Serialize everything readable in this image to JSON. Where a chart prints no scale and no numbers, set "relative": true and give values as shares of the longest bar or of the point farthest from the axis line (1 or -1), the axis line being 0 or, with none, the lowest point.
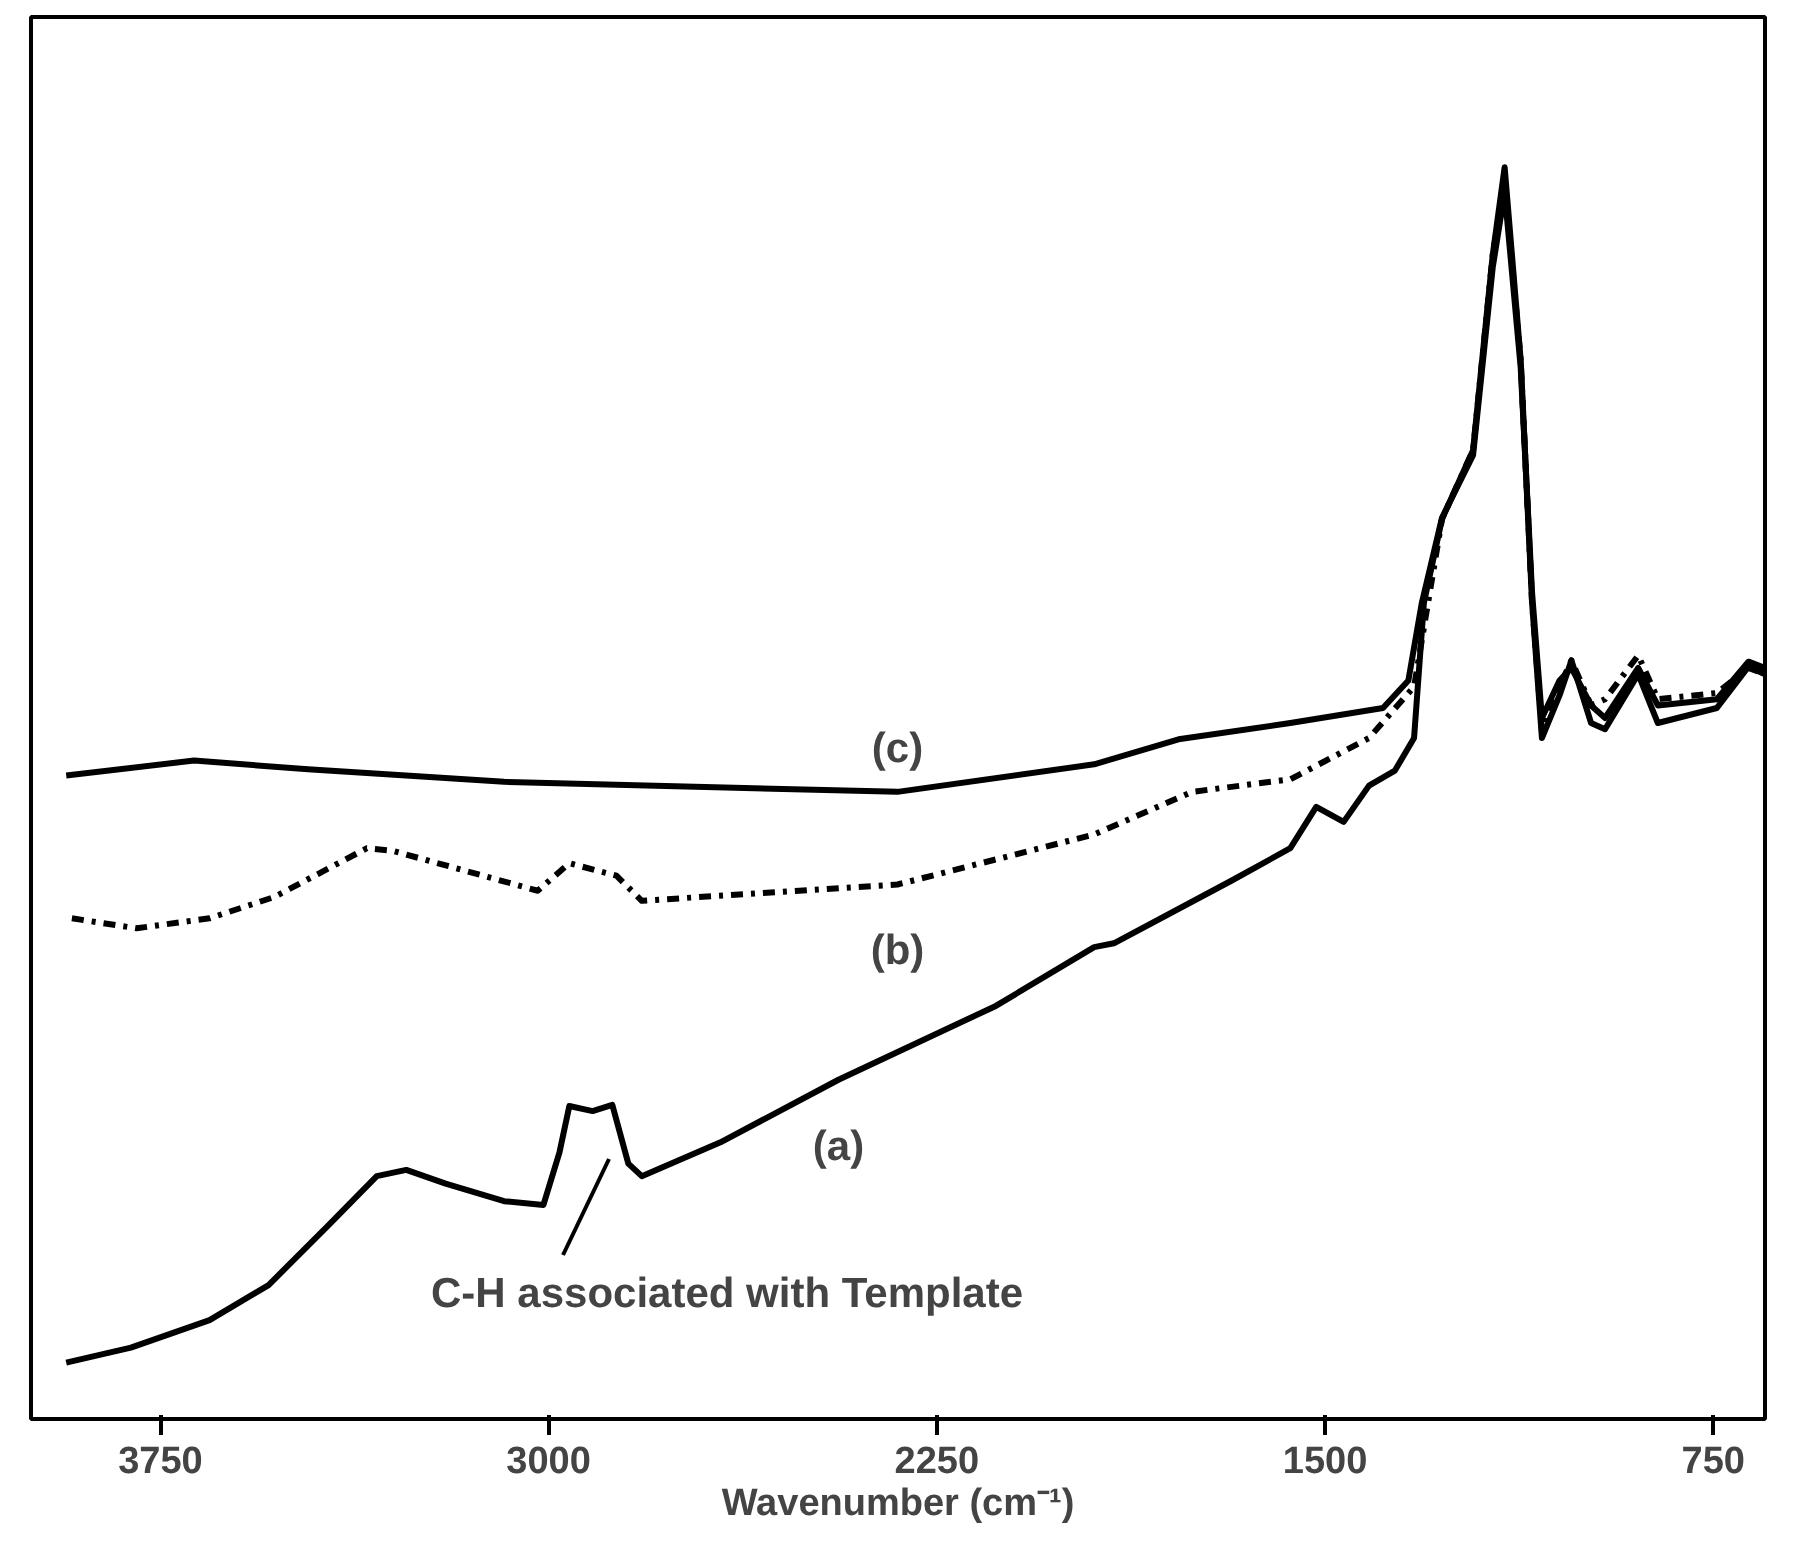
{
  "chart_data": {
    "type": "line",
    "relative": true,
    "xlabel": "Wavenumber (cm⁻¹)",
    "xlim": [
      4000,
      650
    ],
    "xticks": [
      3750,
      3000,
      2250,
      1500,
      750
    ],
    "grid": false,
    "series": [
      {
        "name": "(a)",
        "color": "#000000",
        "line_style": "solid",
        "x": [
          3932,
          3807,
          3655,
          3541,
          3427,
          3332,
          3275,
          3199,
          3086,
          3010,
          2979,
          2960,
          2915,
          2877,
          2846,
          2820,
          2668,
          2440,
          2136,
          1946,
          1908,
          1681,
          1567,
          1517,
          1464,
          1415,
          1365,
          1328,
          1309,
          1274,
          1214,
          1176,
          1153,
          1122,
          1100,
          1081,
          1047,
          1024,
          986,
          959,
          895,
          857,
          743,
          682,
          650
        ],
        "values": [
          0.045,
          0.057,
          0.079,
          0.107,
          0.154,
          0.194,
          0.199,
          0.188,
          0.174,
          0.171,
          0.213,
          0.25,
          0.246,
          0.251,
          0.204,
          0.194,
          0.221,
          0.271,
          0.33,
          0.377,
          0.38,
          0.43,
          0.456,
          0.489,
          0.477,
          0.506,
          0.518,
          0.544,
          0.652,
          0.719,
          0.774,
          0.93,
          1.0,
          0.846,
          0.652,
          0.544,
          0.578,
          0.606,
          0.556,
          0.551,
          0.595,
          0.556,
          0.568,
          0.601,
          0.595
        ]
      },
      {
        "name": "(b)",
        "color": "#000000",
        "line_style": "dashdot",
        "x": [
          3921,
          3796,
          3655,
          3530,
          3351,
          3302,
          3021,
          2960,
          2869,
          2820,
          2516,
          2326,
          1946,
          1757,
          1567,
          1415,
          1328,
          1301,
          1274,
          1214,
          1176,
          1153,
          1122,
          1100,
          1081,
          1047,
          1024,
          986,
          959,
          895,
          857,
          743,
          682,
          650
        ],
        "values": [
          0.4,
          0.392,
          0.4,
          0.417,
          0.456,
          0.454,
          0.422,
          0.444,
          0.434,
          0.414,
          0.422,
          0.427,
          0.467,
          0.501,
          0.511,
          0.544,
          0.585,
          0.652,
          0.719,
          0.774,
          0.93,
          0.99,
          0.846,
          0.652,
          0.55,
          0.585,
          0.606,
          0.57,
          0.575,
          0.61,
          0.575,
          0.58,
          0.6,
          0.595
        ]
      },
      {
        "name": "(c)",
        "color": "#000000",
        "line_style": "solid",
        "x": [
          3932,
          3685,
          3465,
          3086,
          2326,
          1946,
          1783,
          1567,
          1388,
          1339,
          1313,
          1274,
          1214,
          1176,
          1153,
          1122,
          1100,
          1081,
          1047,
          1024,
          986,
          959,
          895,
          857,
          743,
          682,
          650
        ],
        "values": [
          0.514,
          0.526,
          0.519,
          0.509,
          0.501,
          0.523,
          0.543,
          0.556,
          0.568,
          0.59,
          0.652,
          0.72,
          0.77,
          0.92,
          0.98,
          0.84,
          0.66,
          0.56,
          0.59,
          0.6,
          0.57,
          0.56,
          0.6,
          0.57,
          0.575,
          0.605,
          0.6
        ]
      }
    ],
    "annotations": [
      "C-H associated with Template"
    ]
  }
}
